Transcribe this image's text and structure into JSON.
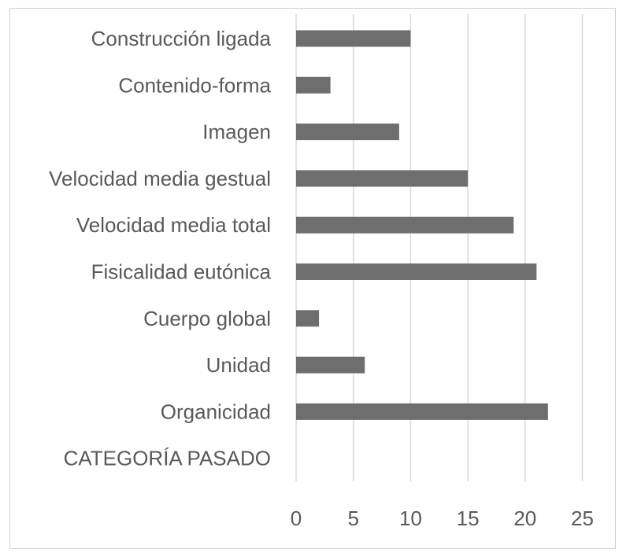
{
  "chart_data": {
    "type": "bar",
    "orientation": "horizontal",
    "categories": [
      "Construcción ligada",
      "Contenido-forma",
      "Imagen",
      "Velocidad media gestual",
      "Velocidad media total",
      "Fisicalidad eutónica",
      "Cuerpo global",
      "Unidad",
      "Organicidad",
      "CATEGORÍA PASADO"
    ],
    "values": [
      10,
      3,
      9,
      15,
      19,
      21,
      2,
      6,
      22,
      null
    ],
    "xlim": [
      0,
      25
    ],
    "x_ticks": [
      "0",
      "5",
      "10",
      "15",
      "20",
      "25"
    ],
    "title": "",
    "xlabel": "",
    "ylabel": "",
    "grid": "vertical",
    "legend": "none",
    "bar_color": "#6e6e6e",
    "grid_color": "#d9d9d9"
  }
}
